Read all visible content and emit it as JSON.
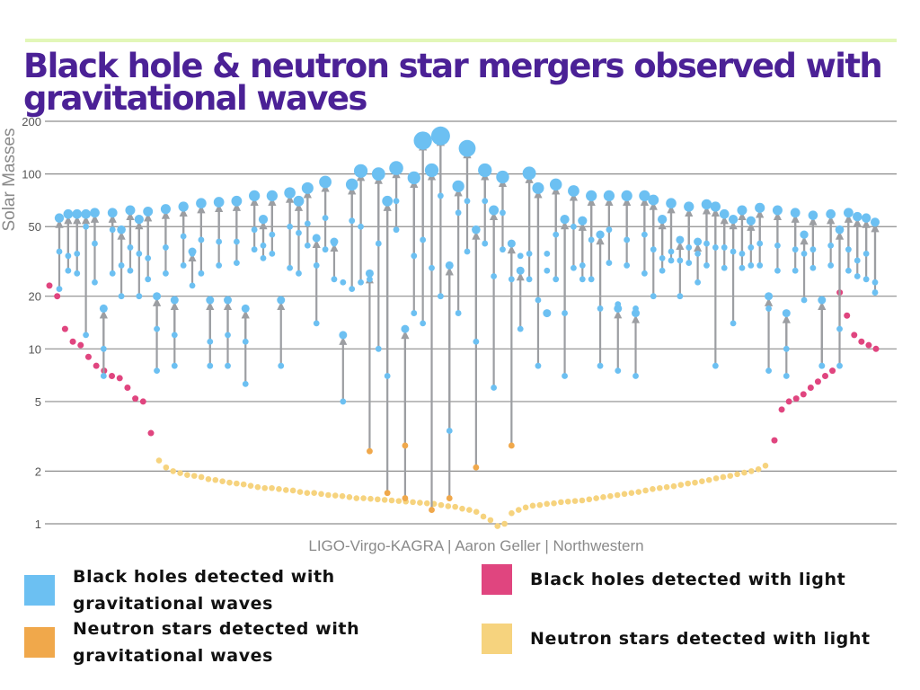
{
  "page": {
    "title": "Black hole & neutron star mergers observed with gravitational waves"
  },
  "colors": {
    "gw_black_hole": "#6cc0f2",
    "gw_neutron_star": "#f0a84b",
    "em_black_hole": "#e0457f",
    "em_neutron_star": "#f6d37e",
    "arrow": "#9c9ea2",
    "title": "#4b2196",
    "accent_rule": "#e2f7b8"
  },
  "legend": [
    {
      "label": "Black holes detected with gravitational waves",
      "color": "#6cc0f2"
    },
    {
      "label": "Neutron stars detected with gravitational waves",
      "color": "#f0a84b"
    },
    {
      "label": "Black holes detected with light",
      "color": "#e0457f"
    },
    {
      "label": "Neutron stars detected with light",
      "color": "#f6d37e"
    }
  ],
  "chart_data": {
    "type": "scatter",
    "title": "Black hole & neutron star mergers observed with gravitational waves",
    "ylabel": "Solar Masses",
    "xlabel": "",
    "credit": "LIGO-Virgo-KAGRA | Aaron Geller | Northwestern",
    "y_scale": "log",
    "ylim": [
      1,
      200
    ],
    "y_ticks": [
      1,
      2,
      5,
      10,
      20,
      50,
      100,
      200
    ],
    "y_tick_labels": [
      "1",
      "2",
      "5",
      "10",
      "20",
      "50",
      "100",
      "200"
    ],
    "grid": true,
    "legend_position": "bottom",
    "gw_mergers": [
      {
        "m1": 36,
        "m2": 22,
        "final": 56
      },
      {
        "m1": 34,
        "m2": 28,
        "final": 59
      },
      {
        "m1": 35,
        "m2": 27,
        "final": 59
      },
      {
        "m1": 12,
        "m2": 50,
        "final": 59
      },
      {
        "m1": 40,
        "m2": 24,
        "final": 60
      },
      {
        "m1": 10,
        "m2": 7,
        "final": 17
      },
      {
        "m1": 48,
        "m2": 27,
        "final": 60
      },
      {
        "m1": 30,
        "m2": 20,
        "final": 48
      },
      {
        "m1": 38,
        "m2": 28,
        "final": 62
      },
      {
        "m1": 35,
        "m2": 20,
        "final": 55
      },
      {
        "m1": 33,
        "m2": 25,
        "final": 61
      },
      {
        "m1": 13,
        "m2": 7.5,
        "final": 20
      },
      {
        "m1": 38,
        "m2": 27,
        "final": 63
      },
      {
        "m1": 12,
        "m2": 8,
        "final": 19
      },
      {
        "m1": 44,
        "m2": 30,
        "final": 65
      },
      {
        "m1": 35,
        "m2": 23,
        "final": 36
      },
      {
        "m1": 42,
        "m2": 27,
        "final": 68
      },
      {
        "m1": 11,
        "m2": 8,
        "final": 19
      },
      {
        "m1": 41,
        "m2": 30,
        "final": 69
      },
      {
        "m1": 12,
        "m2": 8,
        "final": 19
      },
      {
        "m1": 41,
        "m2": 31,
        "final": 70
      },
      {
        "m1": 11,
        "m2": 6.3,
        "final": 17
      },
      {
        "m1": 48,
        "m2": 37,
        "final": 75
      },
      {
        "m1": 39,
        "m2": 33,
        "final": 55
      },
      {
        "m1": 45,
        "m2": 35,
        "final": 75
      },
      {
        "m1": 19,
        "m2": 8,
        "final": 19
      },
      {
        "m1": 50,
        "m2": 29,
        "final": 78
      },
      {
        "m1": 46,
        "m2": 27,
        "final": 70
      },
      {
        "m1": 52,
        "m2": 39,
        "final": 83
      },
      {
        "m1": 30,
        "m2": 14,
        "final": 43
      },
      {
        "m1": 56,
        "m2": 37,
        "final": 90
      },
      {
        "m1": 40,
        "m2": 25,
        "final": 41
      },
      {
        "m1": 24,
        "m2": 5,
        "final": 12
      },
      {
        "m1": 54,
        "m2": 22,
        "final": 87
      },
      {
        "m1": 50,
        "m2": 24,
        "final": 104
      },
      {
        "m1": 25,
        "m2": 2.6,
        "final": 27
      },
      {
        "m1": 40,
        "m2": 10,
        "final": 100
      },
      {
        "m1": 7,
        "m2": 1.5,
        "final": 70
      },
      {
        "m1": 70,
        "m2": 48,
        "final": 108
      },
      {
        "m1": 2.8,
        "m2": 1.4,
        "final": 13
      },
      {
        "m1": 34,
        "m2": 16,
        "final": 95
      },
      {
        "m1": 42,
        "m2": 14,
        "final": 155
      },
      {
        "m1": 29,
        "m2": 1.2,
        "final": 105
      },
      {
        "m1": 75,
        "m2": 20,
        "final": 165
      },
      {
        "m1": 3.4,
        "m2": 1.4,
        "final": 30
      },
      {
        "m1": 60,
        "m2": 16,
        "final": 85
      },
      {
        "m1": 70,
        "m2": 36,
        "final": 140
      },
      {
        "m1": 11,
        "m2": 2.1,
        "final": 48
      },
      {
        "m1": 70,
        "m2": 40,
        "final": 105
      },
      {
        "m1": 26,
        "m2": 6,
        "final": 62
      },
      {
        "m1": 60,
        "m2": 37,
        "final": 96
      },
      {
        "m1": 25,
        "m2": 2.8,
        "final": 40
      },
      {
        "m1": 34,
        "m2": 13,
        "final": 28
      },
      {
        "m1": 35,
        "m2": 25,
        "final": 101
      },
      {
        "m1": 19,
        "m2": 8,
        "final": 83
      },
      {
        "m1": 35,
        "m2": 28,
        "final": 16
      },
      {
        "m1": 45,
        "m2": 25,
        "final": 87
      },
      {
        "m1": 16,
        "m2": 7,
        "final": 55
      },
      {
        "m1": 50,
        "m2": 29,
        "final": 80
      },
      {
        "m1": 30,
        "m2": 25,
        "final": 54
      },
      {
        "m1": 42,
        "m2": 25,
        "final": 75
      },
      {
        "m1": 17,
        "m2": 8,
        "final": 45
      },
      {
        "m1": 48,
        "m2": 31,
        "final": 75
      },
      {
        "m1": 18,
        "m2": 7.5,
        "final": 17
      },
      {
        "m1": 42,
        "m2": 30,
        "final": 75
      },
      {
        "m1": 17,
        "m2": 7,
        "final": 16
      },
      {
        "m1": 45,
        "m2": 27,
        "final": 75
      },
      {
        "m1": 37,
        "m2": 20,
        "final": 71
      },
      {
        "m1": 33,
        "m2": 28,
        "final": 55
      },
      {
        "m1": 36,
        "m2": 32,
        "final": 68
      },
      {
        "m1": 32,
        "m2": 20,
        "final": 42
      },
      {
        "m1": 38,
        "m2": 31,
        "final": 65
      },
      {
        "m1": 35,
        "m2": 24,
        "final": 41
      },
      {
        "m1": 40,
        "m2": 30,
        "final": 67
      },
      {
        "m1": 38,
        "m2": 8,
        "final": 65
      },
      {
        "m1": 38,
        "m2": 29,
        "final": 59
      },
      {
        "m1": 36,
        "m2": 14,
        "final": 55
      },
      {
        "m1": 35,
        "m2": 29,
        "final": 62
      },
      {
        "m1": 38,
        "m2": 30,
        "final": 54
      },
      {
        "m1": 40,
        "m2": 30,
        "final": 64
      },
      {
        "m1": 17,
        "m2": 7.5,
        "final": 20
      },
      {
        "m1": 39,
        "m2": 28,
        "final": 62
      },
      {
        "m1": 10,
        "m2": 7,
        "final": 16
      },
      {
        "m1": 37,
        "m2": 28,
        "final": 60
      },
      {
        "m1": 35,
        "m2": 19,
        "final": 45
      },
      {
        "m1": 37,
        "m2": 29,
        "final": 58
      },
      {
        "m1": 8,
        "m2": 8,
        "final": 19
      },
      {
        "m1": 39,
        "m2": 30,
        "final": 59
      },
      {
        "m1": 13,
        "m2": 8,
        "final": 48
      },
      {
        "m1": 37,
        "m2": 28,
        "final": 60
      },
      {
        "m1": 32,
        "m2": 26,
        "final": 57
      },
      {
        "m1": 35,
        "m2": 25,
        "final": 56
      },
      {
        "m1": 24,
        "m2": 21,
        "final": 53
      }
    ],
    "em_black_holes": [
      23,
      20,
      13,
      11,
      10.5,
      9,
      8,
      7.5,
      7,
      6.8,
      6,
      5.2,
      5,
      3.3,
      10,
      10.5,
      11,
      12,
      15.5,
      21,
      7.5,
      7,
      6.5,
      6,
      5.5,
      5.2,
      5,
      4.5,
      3
    ],
    "em_neutron_stars": [
      2.3,
      2.1,
      2,
      1.95,
      1.9,
      1.88,
      1.85,
      1.8,
      1.78,
      1.75,
      1.72,
      1.7,
      1.68,
      1.65,
      1.62,
      1.6,
      1.6,
      1.58,
      1.56,
      1.55,
      1.52,
      1.5,
      1.5,
      1.48,
      1.46,
      1.45,
      1.44,
      1.42,
      1.4,
      1.4,
      1.39,
      1.38,
      1.37,
      1.36,
      1.35,
      1.34,
      1.33,
      1.32,
      1.31,
      1.3,
      1.28,
      1.26,
      1.25,
      1.22,
      1.2,
      1.17,
      1.1,
      1.05,
      0.97,
      1.0,
      1.15,
      1.2,
      1.24,
      1.27,
      1.28,
      1.3,
      1.31,
      1.33,
      1.34,
      1.35,
      1.36,
      1.38,
      1.4,
      1.42,
      1.44,
      1.46,
      1.48,
      1.5,
      1.52,
      1.55,
      1.58,
      1.6,
      1.62,
      1.64,
      1.67,
      1.7,
      1.72,
      1.75,
      1.78,
      1.82,
      1.85,
      1.88,
      1.92,
      1.96,
      2.0,
      2.05,
      2.15
    ]
  }
}
